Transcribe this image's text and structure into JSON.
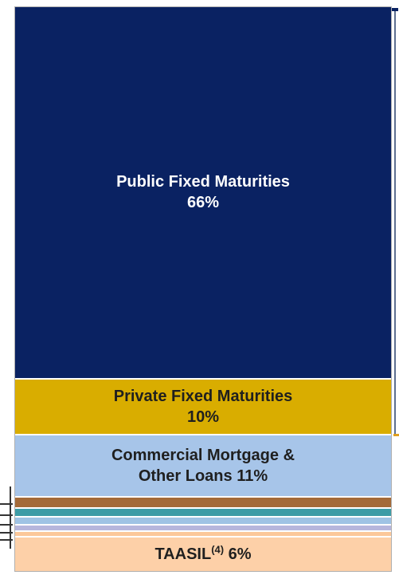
{
  "chart_data": {
    "type": "stacked-bar",
    "categories": [
      "Public Fixed Maturities",
      "Private Fixed Maturities",
      "Commercial Mortgage & Other Loans",
      null,
      null,
      null,
      null,
      null,
      "TAASIL"
    ],
    "category_notes": [
      null,
      null,
      null,
      null,
      null,
      null,
      null,
      null,
      "(4)"
    ],
    "values": [
      66,
      10,
      11,
      2,
      1.5,
      1.5,
      1,
      1,
      6
    ],
    "value_labels": [
      "66%",
      "10%",
      "11%",
      null,
      null,
      null,
      null,
      null,
      "6%"
    ],
    "colors": [
      "#0a2262",
      "#d9ad00",
      "#a7c5e9",
      "#a46a38",
      "#3d9ca6",
      "#9fc3e4",
      "#b6b6dc",
      "#fcc89a",
      "#fdd0a8"
    ],
    "text_colors": [
      "#ffffff",
      "#1f1f1f",
      "#1f1f1f",
      null,
      null,
      null,
      null,
      null,
      "#1f1f1f"
    ]
  }
}
